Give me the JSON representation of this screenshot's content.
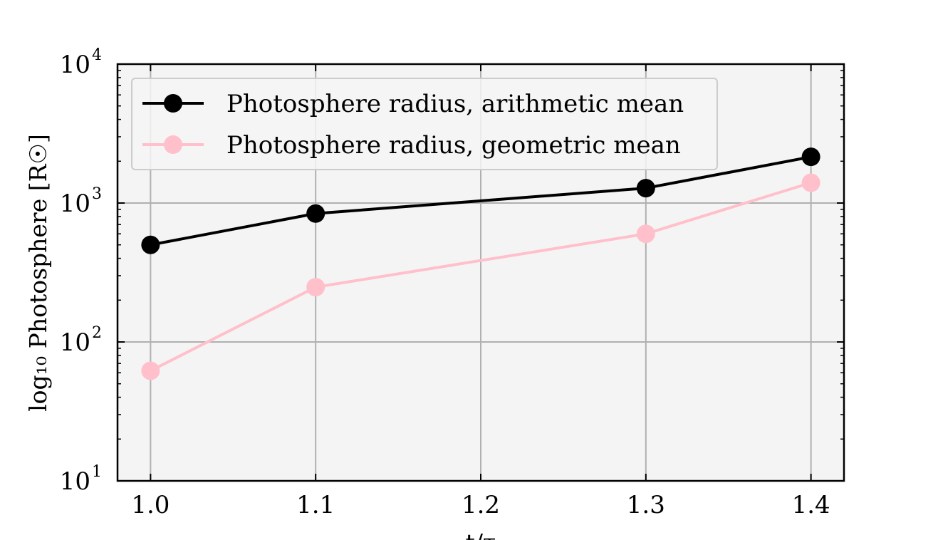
{
  "chart_data": {
    "type": "line",
    "title": "",
    "xlabel": "t/τ",
    "ylabel": "log₁₀ Photosphere [R☉]",
    "x": [
      1.0,
      1.1,
      1.3,
      1.4
    ],
    "x_ticks": [
      "1.0",
      "1.1",
      "1.2",
      "1.3",
      "1.4"
    ],
    "xlim": [
      0.98,
      1.42
    ],
    "yscale": "log",
    "ylim": [
      10,
      10000
    ],
    "y_ticks": [
      {
        "value": 10,
        "base": "10",
        "exp": "1"
      },
      {
        "value": 100,
        "base": "10",
        "exp": "2"
      },
      {
        "value": 1000,
        "base": "10",
        "exp": "3"
      },
      {
        "value": 10000,
        "base": "10",
        "exp": "4"
      }
    ],
    "grid": true,
    "legend_position": "top-left",
    "series": [
      {
        "name": "Photosphere radius, arithmetic mean",
        "color": "#000000",
        "values": [
          500,
          840,
          1280,
          2150
        ]
      },
      {
        "name": "Photosphere radius, geometric mean",
        "color": "#ffc0cb",
        "values": [
          62,
          248,
          600,
          1400
        ]
      }
    ],
    "colors": {
      "plot_background": "#f4f4f4",
      "grid": "#b0b0b0"
    }
  }
}
